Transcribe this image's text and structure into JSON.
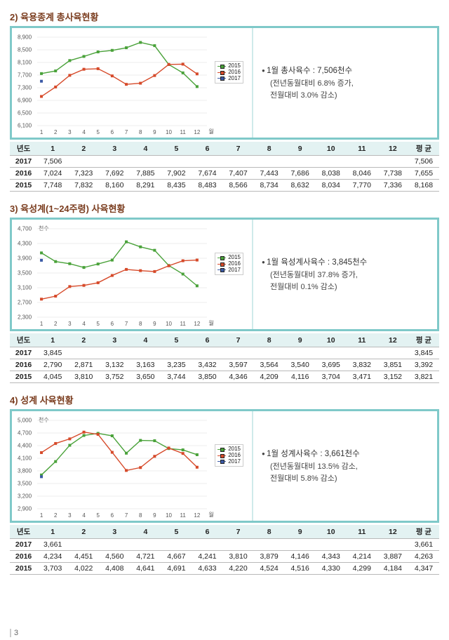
{
  "pageNumber": "3",
  "sections": [
    {
      "title": "2) 육용종계 총사육현황",
      "note_line1": "1월 총사육수 : 7,506천수",
      "note_line2": "(전년동월대비 6.8% 증가,",
      "note_line3": "전월대비 3.0% 감소)",
      "chart": {
        "unit": "",
        "ylim": [
          6100,
          8900
        ],
        "ytick_step": 400,
        "xcats": [
          "1",
          "2",
          "3",
          "4",
          "5",
          "6",
          "7",
          "8",
          "9",
          "10",
          "11",
          "12",
          "월"
        ],
        "series": {
          "2017": {
            "color": "#3b5aa6",
            "vals": [
              7506
            ]
          },
          "2016": {
            "color": "#d64a2a",
            "vals": [
              7024,
              7323,
              7692,
              7885,
              7902,
              7674,
              7407,
              7443,
              7686,
              8038,
              8046,
              7738
            ]
          },
          "2015": {
            "color": "#4aa23a",
            "vals": [
              7748,
              7832,
              8160,
              8291,
              8435,
              8483,
              8566,
              8734,
              8632,
              8034,
              7770,
              7336
            ]
          }
        }
      },
      "table": {
        "head": [
          "년도",
          "1",
          "2",
          "3",
          "4",
          "5",
          "6",
          "7",
          "8",
          "9",
          "10",
          "11",
          "12",
          "평 균"
        ],
        "rows": [
          [
            "2017",
            "7,506",
            "",
            "",
            "",
            "",
            "",
            "",
            "",
            "",
            "",
            "",
            "",
            "7,506"
          ],
          [
            "2016",
            "7,024",
            "7,323",
            "7,692",
            "7,885",
            "7,902",
            "7,674",
            "7,407",
            "7,443",
            "7,686",
            "8,038",
            "8,046",
            "7,738",
            "7,655"
          ],
          [
            "2015",
            "7,748",
            "7,832",
            "8,160",
            "8,291",
            "8,435",
            "8,483",
            "8,566",
            "8,734",
            "8,632",
            "8,034",
            "7,770",
            "7,336",
            "8,168"
          ]
        ]
      }
    },
    {
      "title": "3) 육성계(1~24주령) 사육현황",
      "note_line1": "1월 육성계사육수 : 3,845천수",
      "note_line2": "(전년동월대비 37.8% 증가,",
      "note_line3": "전월대비 0.1% 감소)",
      "chart": {
        "unit": "천수",
        "ylim": [
          2300,
          4700
        ],
        "ytick_step": 400,
        "xcats": [
          "1",
          "2",
          "3",
          "4",
          "5",
          "6",
          "7",
          "8",
          "9",
          "10",
          "11",
          "12",
          "월"
        ],
        "series": {
          "2017": {
            "color": "#3b5aa6",
            "vals": [
              3845
            ]
          },
          "2016": {
            "color": "#d64a2a",
            "vals": [
              2790,
              2871,
              3132,
              3163,
              3235,
              3432,
              3597,
              3564,
              3540,
              3695,
              3832,
              3851
            ]
          },
          "2015": {
            "color": "#4aa23a",
            "vals": [
              4045,
              3810,
              3752,
              3650,
              3744,
              3850,
              4346,
              4209,
              4116,
              3704,
              3471,
              3152
            ]
          }
        }
      },
      "table": {
        "head": [
          "년도",
          "1",
          "2",
          "3",
          "4",
          "5",
          "6",
          "7",
          "8",
          "9",
          "10",
          "11",
          "12",
          "평 균"
        ],
        "rows": [
          [
            "2017",
            "3,845",
            "",
            "",
            "",
            "",
            "",
            "",
            "",
            "",
            "",
            "",
            "",
            "3,845"
          ],
          [
            "2016",
            "2,790",
            "2,871",
            "3,132",
            "3,163",
            "3,235",
            "3,432",
            "3,597",
            "3,564",
            "3,540",
            "3,695",
            "3,832",
            "3,851",
            "3,392"
          ],
          [
            "2015",
            "4,045",
            "3,810",
            "3,752",
            "3,650",
            "3,744",
            "3,850",
            "4,346",
            "4,209",
            "4,116",
            "3,704",
            "3,471",
            "3,152",
            "3,821"
          ]
        ]
      }
    },
    {
      "title": "4) 성계 사육현황",
      "note_line1": "1월 성계사육수 : 3,661천수",
      "note_line2": "(전년동월대비 13.5% 감소,",
      "note_line3": "전월대비 5.8% 감소)",
      "chart": {
        "unit": "천수",
        "ylim": [
          2900,
          5000
        ],
        "ytick_step": 300,
        "xcats": [
          "1",
          "2",
          "3",
          "4",
          "5",
          "6",
          "7",
          "8",
          "9",
          "10",
          "11",
          "12",
          "월"
        ],
        "series": {
          "2017": {
            "color": "#3b5aa6",
            "vals": [
              3661
            ]
          },
          "2016": {
            "color": "#d64a2a",
            "vals": [
              4234,
              4451,
              4560,
              4721,
              4667,
              4241,
              3810,
              3879,
              4146,
              4343,
              4214,
              3887
            ]
          },
          "2015": {
            "color": "#4aa23a",
            "vals": [
              3703,
              4022,
              4408,
              4641,
              4691,
              4633,
              4220,
              4524,
              4516,
              4330,
              4299,
              4184
            ]
          }
        }
      },
      "table": {
        "head": [
          "년도",
          "1",
          "2",
          "3",
          "4",
          "5",
          "6",
          "7",
          "8",
          "9",
          "10",
          "11",
          "12",
          "평 균"
        ],
        "rows": [
          [
            "2017",
            "3,661",
            "",
            "",
            "",
            "",
            "",
            "",
            "",
            "",
            "",
            "",
            "",
            "3,661"
          ],
          [
            "2016",
            "4,234",
            "4,451",
            "4,560",
            "4,721",
            "4,667",
            "4,241",
            "3,810",
            "3,879",
            "4,146",
            "4,343",
            "4,214",
            "3,887",
            "4,263"
          ],
          [
            "2015",
            "3,703",
            "4,022",
            "4,408",
            "4,641",
            "4,691",
            "4,633",
            "4,220",
            "4,524",
            "4,516",
            "4,330",
            "4,299",
            "4,184",
            "4,347"
          ]
        ]
      }
    }
  ]
}
